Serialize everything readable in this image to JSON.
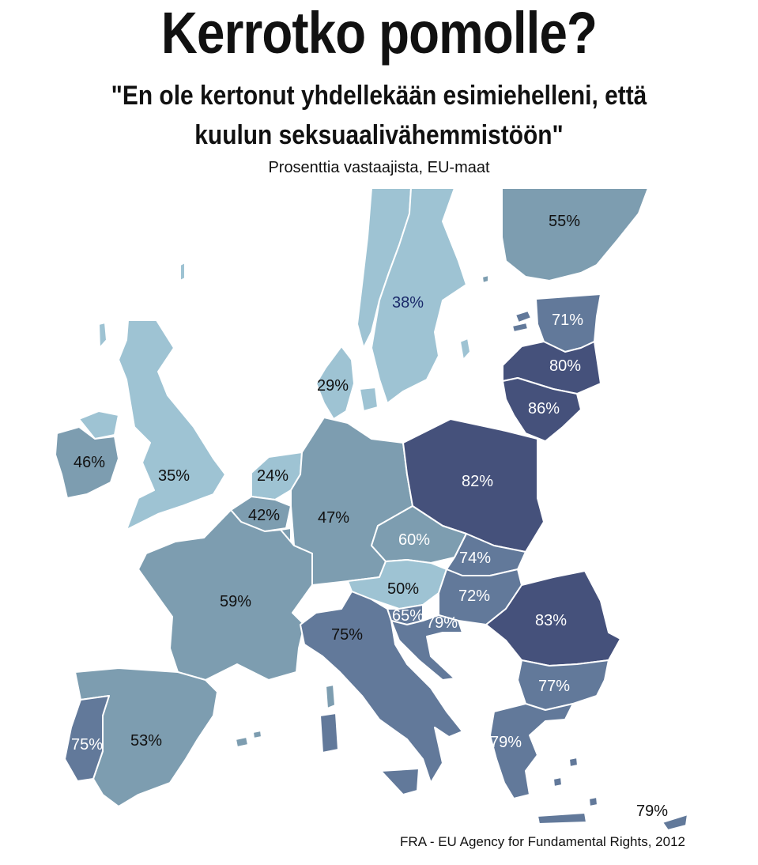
{
  "title": "Kerrotko pomolle?",
  "subtitle_line1": "\"En ole kertonut yhdellekään esimiehelleni, että",
  "subtitle_line2": "kuulun seksuaalivähemmistöön\"",
  "note": "Prosenttia vastaajista, EU-maat",
  "source": "FRA - EU Agency for Fundamental Rights, 2012",
  "colors": {
    "light": "#9ec3d3",
    "medium": "#7d9db0",
    "mediumdark": "#62799a",
    "dark": "#45517b",
    "label_dark": "#111111",
    "label_light": "#ffffff",
    "label_sweden": "#1a2a6a"
  },
  "labels": {
    "finland": "55%",
    "sweden": "38%",
    "estonia": "71%",
    "latvia": "80%",
    "lithuania": "86%",
    "denmark": "29%",
    "ireland": "46%",
    "uk": "35%",
    "netherlands": "24%",
    "germany": "47%",
    "poland": "82%",
    "belgium": "42%",
    "czech": "60%",
    "slovakia": "74%",
    "france": "59%",
    "austria": "50%",
    "hungary": "72%",
    "romania": "83%",
    "slovenia": "65%",
    "croatia": "79%",
    "italy": "75%",
    "bulgaria": "77%",
    "spain": "53%",
    "portugal": "75%",
    "greece": "79%",
    "cyprus": "79%"
  }
}
